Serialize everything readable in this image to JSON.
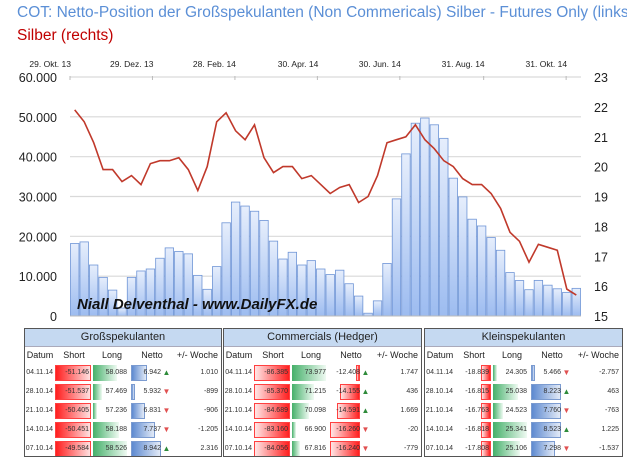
{
  "header": {
    "title": "COT: Netto-Position der Großspekulanten (Non Commericals) Silber - Futures Only (links)",
    "subtitle": "Silber (rechts)"
  },
  "watermark": "Niall Delventhal - www.DailyFX.de",
  "colors": {
    "title": "#5b8fd6",
    "subtitle": "#c00000",
    "bars": "#a9c4f0",
    "line": "#c0392b"
  },
  "chart_data": {
    "type": "bar+line",
    "x_tick_labels": [
      "29. Okt. 13",
      "29. Dez. 13",
      "28. Feb. 14",
      "30. Apr. 14",
      "30. Jun. 14",
      "31. Aug. 14",
      "31. Okt. 14"
    ],
    "x_tick_dates": [
      "2013-10-29",
      "2013-12-29",
      "2014-02-28",
      "2014-04-30",
      "2014-06-30",
      "2014-08-31",
      "2014-10-31"
    ],
    "y_left_ticks": [
      "0",
      "10.000",
      "20.000",
      "30.000",
      "40.000",
      "50.000",
      "60.000"
    ],
    "y_left_range": [
      0,
      60000
    ],
    "y_right_ticks": [
      "15",
      "16",
      "17",
      "18",
      "19",
      "20",
      "21",
      "22",
      "23"
    ],
    "y_right_range": [
      15,
      23
    ],
    "grid": true,
    "x": [
      "2013-10-29",
      "2013-11-05",
      "2013-11-12",
      "2013-11-19",
      "2013-11-26",
      "2013-12-03",
      "2013-12-10",
      "2013-12-17",
      "2013-12-24",
      "2013-12-31",
      "2014-01-07",
      "2014-01-14",
      "2014-01-21",
      "2014-01-28",
      "2014-02-04",
      "2014-02-11",
      "2014-02-18",
      "2014-02-25",
      "2014-03-04",
      "2014-03-11",
      "2014-03-18",
      "2014-03-25",
      "2014-04-01",
      "2014-04-08",
      "2014-04-15",
      "2014-04-22",
      "2014-04-29",
      "2014-05-06",
      "2014-05-13",
      "2014-05-20",
      "2014-05-27",
      "2014-06-03",
      "2014-06-10",
      "2014-06-17",
      "2014-06-24",
      "2014-07-01",
      "2014-07-08",
      "2014-07-15",
      "2014-07-22",
      "2014-07-29",
      "2014-08-05",
      "2014-08-12",
      "2014-08-19",
      "2014-08-26",
      "2014-09-02",
      "2014-09-09",
      "2014-09-16",
      "2014-09-23",
      "2014-09-30",
      "2014-10-07",
      "2014-10-14",
      "2014-10-21",
      "2014-10-28",
      "2014-11-04"
    ],
    "series": [
      {
        "type": "bar",
        "axis": "left",
        "values": [
          18200,
          18600,
          12800,
          9700,
          6500,
          2000,
          9700,
          11300,
          11800,
          14500,
          17100,
          16200,
          15600,
          10200,
          6700,
          12400,
          23400,
          28600,
          27600,
          26300,
          24000,
          18800,
          14300,
          16000,
          12800,
          13900,
          11800,
          10400,
          11500,
          8100,
          5000,
          700,
          3800,
          13200,
          29400,
          40700,
          48400,
          49700,
          48000,
          44600,
          34600,
          29900,
          24300,
          22600,
          19700,
          16500,
          10900,
          8900,
          6600,
          8942,
          7737,
          6831,
          5932,
          6942
        ]
      },
      {
        "type": "line",
        "axis": "right",
        "values": [
          21.9,
          21.5,
          20.8,
          19.9,
          19.9,
          19.5,
          19.7,
          19.4,
          20.1,
          20.2,
          20.2,
          20.3,
          19.9,
          19.2,
          20.0,
          21.5,
          21.8,
          21.2,
          20.9,
          21.4,
          20.3,
          19.8,
          20.0,
          20.0,
          19.6,
          19.7,
          19.4,
          19.1,
          19.3,
          19.4,
          18.8,
          19.0,
          19.7,
          20.8,
          20.9,
          21.0,
          21.4,
          20.9,
          20.6,
          20.2,
          20.0,
          19.6,
          19.4,
          19.4,
          19.1,
          18.6,
          17.8,
          17.5,
          16.8,
          17.4,
          17.3,
          17.2,
          15.9,
          15.7
        ]
      }
    ]
  },
  "tables": [
    {
      "title": "Großspekulanten",
      "columns": [
        "Datum",
        "Short",
        "Long",
        "Netto",
        "+/- Woche"
      ],
      "rows": [
        {
          "date": "04.11.14",
          "short": "-51.146",
          "long": "58.088",
          "net": "6.942",
          "week": "1.010",
          "dir": "up"
        },
        {
          "date": "28.10.14",
          "short": "-51.537",
          "long": "57.469",
          "net": "5.932",
          "week": "-899",
          "dir": "down"
        },
        {
          "date": "21.10.14",
          "short": "-50.405",
          "long": "57.236",
          "net": "6.831",
          "week": "-906",
          "dir": "down"
        },
        {
          "date": "14.10.14",
          "short": "-50.451",
          "long": "58.188",
          "net": "7.737",
          "week": "-1.205",
          "dir": "down"
        },
        {
          "date": "07.10.14",
          "short": "-49.584",
          "long": "58.526",
          "net": "8.942",
          "week": "2.316",
          "dir": "up"
        }
      ]
    },
    {
      "title": "Commercials (Hedger)",
      "columns": [
        "Datum",
        "Short",
        "Long",
        "Netto",
        "+/- Woche"
      ],
      "rows": [
        {
          "date": "04.11.14",
          "short": "-86.385",
          "long": "73.977",
          "net": "-12.408",
          "week": "1.747",
          "dir": "up"
        },
        {
          "date": "28.10.14",
          "short": "-85.370",
          "long": "71.215",
          "net": "-14.155",
          "week": "436",
          "dir": "up"
        },
        {
          "date": "21.10.14",
          "short": "-84.689",
          "long": "70.098",
          "net": "-14.591",
          "week": "1.669",
          "dir": "up"
        },
        {
          "date": "14.10.14",
          "short": "-83.160",
          "long": "66.900",
          "net": "-16.260",
          "week": "-20",
          "dir": "down"
        },
        {
          "date": "07.10.14",
          "short": "-84.056",
          "long": "67.816",
          "net": "-16.240",
          "week": "-779",
          "dir": "down"
        }
      ]
    },
    {
      "title": "Kleinspekulanten",
      "columns": [
        "Datum",
        "Short",
        "Long",
        "Netto",
        "+/- Woche"
      ],
      "rows": [
        {
          "date": "04.11.14",
          "short": "-18.839",
          "long": "24.305",
          "net": "5.466",
          "week": "-2.757",
          "dir": "down"
        },
        {
          "date": "28.10.14",
          "short": "-16.815",
          "long": "25.038",
          "net": "8.223",
          "week": "463",
          "dir": "up"
        },
        {
          "date": "21.10.14",
          "short": "-16.763",
          "long": "24.523",
          "net": "7.760",
          "week": "-763",
          "dir": "down"
        },
        {
          "date": "14.10.14",
          "short": "-16.818",
          "long": "25.341",
          "net": "8.523",
          "week": "1.225",
          "dir": "up"
        },
        {
          "date": "07.10.14",
          "short": "-17.808",
          "long": "25.106",
          "net": "7.298",
          "week": "-1.537",
          "dir": "down"
        }
      ]
    }
  ]
}
